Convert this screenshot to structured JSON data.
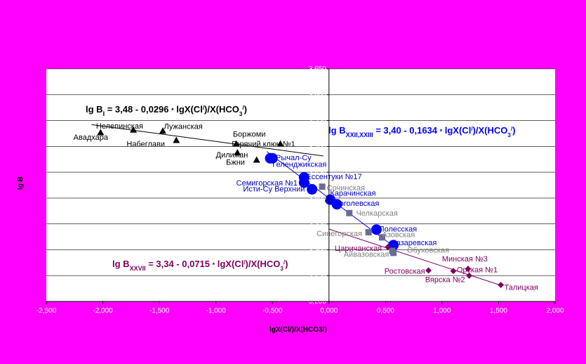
{
  "chart_data": {
    "type": "scatter",
    "xlabel": "lgX(Cl/)/X(HCO3/)",
    "ylabel": "lg B",
    "xlim": [
      -2.5,
      2.0
    ],
    "ylim": [
      3.2,
      3.65
    ],
    "x_ticks": [
      "-2,500",
      "-2,000",
      "-1,500",
      "-1,000",
      "-0,500",
      "0,000",
      "0,500",
      "1,000",
      "1,500",
      "2,000"
    ],
    "x_tick_values": [
      -2.5,
      -2.0,
      -1.5,
      -1.0,
      -0.5,
      0.0,
      0.5,
      1.0,
      1.5,
      2.0
    ],
    "y_ticks": [
      "3,200",
      "3,250",
      "3,300",
      "3,350",
      "3,400",
      "3,450",
      "3,500",
      "3,550",
      "3,600",
      "3,650"
    ],
    "y_tick_values": [
      3.2,
      3.25,
      3.3,
      3.35,
      3.4,
      3.45,
      3.5,
      3.55,
      3.6,
      3.65
    ],
    "grid": "horizontal",
    "series": [
      {
        "marker": "triangle",
        "color": "#000000",
        "label_color": "#000000",
        "fit": {
          "intercept": 3.48,
          "slope": -0.0296,
          "x_range": [
            -2.1,
            -0.05
          ]
        },
        "equation": {
          "main": "lg B",
          "sub": "I",
          "rest": " = 3,48 - 0,0296 ",
          "dot": "*",
          "tail": " lgX(Cl",
          "sup1": "/",
          "tail2": ")/X(HCO",
          "sub2": "3",
          "sup2": "/",
          "end": ")"
        },
        "points": [
          {
            "x": -2.02,
            "y": 3.527,
            "label": "Авадхара",
            "lx": -2.26,
            "ly": 3.518
          },
          {
            "x": -1.73,
            "y": 3.532,
            "label": "Нелепинская",
            "lx": -2.06,
            "ly": 3.54
          },
          {
            "x": -1.47,
            "y": 3.53,
            "label": "Лужанская",
            "lx": -1.46,
            "ly": 3.539
          },
          {
            "x": -1.35,
            "y": 3.512,
            "label": "Набеглави",
            "lx": -1.79,
            "ly": 3.505
          },
          {
            "x": -0.82,
            "y": 3.505,
            "label": "Боржоми",
            "lx": -0.85,
            "ly": 3.524
          },
          {
            "x": -0.81,
            "y": 3.488,
            "label": "Дилижан",
            "lx": -1.0,
            "ly": 3.484
          },
          {
            "x": -0.64,
            "y": 3.474,
            "label": "Бжни",
            "lx": -0.91,
            "ly": 3.47
          },
          {
            "x": -0.43,
            "y": 3.505,
            "label": "Горячий ключ №1",
            "lx": -0.86,
            "ly": 3.505
          }
        ]
      },
      {
        "marker": "circle",
        "color": "#0000ff",
        "label_color": "#0000cc",
        "fit": {
          "intercept": 3.4,
          "slope": -0.1634,
          "x_range": [
            -0.55,
            0.58
          ]
        },
        "equation": {
          "main": "lg B",
          "sub": "XXII,XXIII",
          "rest": " = 3,40 - 0,1634 ",
          "dot": "*",
          "tail": " lgX(Cl",
          "sup1": "/",
          "tail2": ")/X(HCO",
          "sub2": "3",
          "sup2": "/",
          "end": ")"
        },
        "points": [
          {
            "x": -0.52,
            "y": 3.477,
            "label": "Рычал-Су",
            "lx": -0.47,
            "ly": 3.479
          },
          {
            "x": -0.5,
            "y": 3.477,
            "label": "Геленджикская",
            "lx": -0.5,
            "ly": 3.466
          },
          {
            "x": -0.22,
            "y": 3.44,
            "label": "Ессентуки №17",
            "lx": -0.2,
            "ly": 3.442
          },
          {
            "x": -0.22,
            "y": 3.43,
            "label": "Семигорская №1",
            "lx": -0.82,
            "ly": 3.43
          },
          {
            "x": -0.15,
            "y": 3.417,
            "label": "Исти-Су Верхний",
            "lx": -0.76,
            "ly": 3.418
          },
          {
            "x": 0.01,
            "y": 3.397,
            "label": "Карачинская",
            "lx": 0.01,
            "ly": 3.41
          },
          {
            "x": 0.07,
            "y": 3.388,
            "label": "Гоголевская",
            "lx": 0.06,
            "ly": 3.39
          },
          {
            "x": 0.42,
            "y": 3.339,
            "label": "Полесская",
            "lx": 0.44,
            "ly": 3.341
          },
          {
            "x": 0.57,
            "y": 3.309,
            "label": "Лазаревская",
            "lx": 0.55,
            "ly": 3.314
          }
        ]
      },
      {
        "marker": "square",
        "color": "#6b6b9a",
        "label_color": "#808080",
        "points": [
          {
            "x": -0.06,
            "y": 3.422,
            "label": "Сочинская",
            "lx": -0.02,
            "ly": 3.42
          },
          {
            "x": 0.18,
            "y": 3.371,
            "label": "Челкарская",
            "lx": 0.24,
            "ly": 3.371
          },
          {
            "x": 0.35,
            "y": 3.334,
            "label": "Синегорская",
            "lx": -0.11,
            "ly": 3.332
          },
          {
            "x": 0.47,
            "y": 3.324,
            "label": "Азовская",
            "lx": 0.47,
            "ly": 3.33
          },
          {
            "x": 0.56,
            "y": 3.298,
            "label": "Обуховская",
            "lx": 0.69,
            "ly": 3.3
          },
          {
            "x": 0.57,
            "y": 3.294,
            "label": "Айвазовская",
            "lx": 0.13,
            "ly": 3.292
          }
        ]
      },
      {
        "marker": "diamond",
        "color": "#800060",
        "label_color": "#800060",
        "fit": {
          "intercept": 3.34,
          "slope": -0.0715,
          "x_range": [
            0.0,
            1.52
          ]
        },
        "equation": {
          "main": "lg B",
          "sub": "XXVII",
          "rest": " = 3,34 - 0,0715 ",
          "dot": "*",
          "tail": " lgX(Cl",
          "sup1": "/",
          "tail2": ")/X(HCO",
          "sub2": "3",
          "sup2": "/",
          "end": ")"
        },
        "points": [
          {
            "x": 0.52,
            "y": 3.305,
            "label": "Царичанская",
            "lx": 0.05,
            "ly": 3.303
          },
          {
            "x": 0.88,
            "y": 3.26,
            "label": "Ростовская",
            "lx": 0.49,
            "ly": 3.259
          },
          {
            "x": 1.1,
            "y": 3.259,
            "label": "Орская №1",
            "lx": 1.13,
            "ly": 3.262
          },
          {
            "x": 1.23,
            "y": 3.263,
            "label": "Минская №3",
            "lx": 1.0,
            "ly": 3.283
          },
          {
            "x": 1.24,
            "y": 3.25,
            "label": "Вярска №2",
            "lx": 0.85,
            "ly": 3.243
          },
          {
            "x": 1.52,
            "y": 3.232,
            "label": "Талицкая",
            "lx": 1.55,
            "ly": 3.228
          }
        ]
      }
    ]
  }
}
